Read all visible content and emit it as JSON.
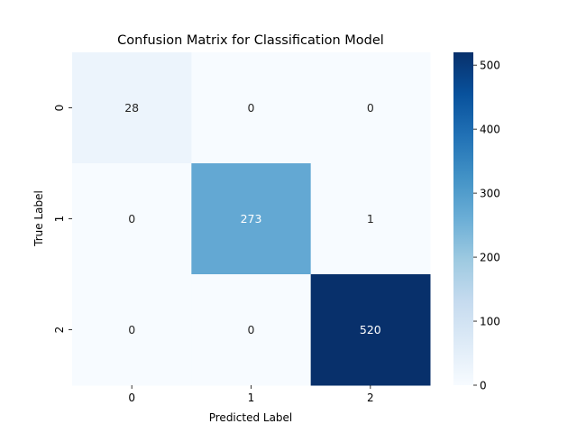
{
  "chart_data": {
    "type": "heatmap",
    "title": "Confusion Matrix for Classification Model",
    "xlabel": "Predicted Label",
    "ylabel": "True Label",
    "x_categories": [
      "0",
      "1",
      "2"
    ],
    "y_categories": [
      "0",
      "1",
      "2"
    ],
    "values": [
      [
        28,
        0,
        0
      ],
      [
        0,
        273,
        1
      ],
      [
        0,
        0,
        520
      ]
    ],
    "colorbar": {
      "colormap": "Blues",
      "min": 0,
      "max": 520,
      "ticks": [
        "0",
        "100",
        "200",
        "300",
        "400",
        "500"
      ]
    },
    "grid": false,
    "legend": "colorbar-right"
  },
  "colors": {
    "blues_stops": [
      "#f7fbff",
      "#deebf7",
      "#c6dbef",
      "#9ecae1",
      "#6baed6",
      "#4292c6",
      "#2171b5",
      "#08519c",
      "#08306b"
    ],
    "dark_text": "#262626",
    "light_text": "#ffffff",
    "axis": "#000000"
  }
}
